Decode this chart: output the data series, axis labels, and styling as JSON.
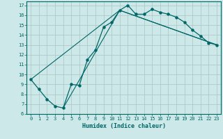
{
  "xlabel": "Humidex (Indice chaleur)",
  "bg_color": "#cce8e8",
  "grid_color": "#b0c8c8",
  "line_color": "#006666",
  "xlim": [
    -0.5,
    23.5
  ],
  "ylim": [
    6,
    17.4
  ],
  "xticks": [
    0,
    1,
    2,
    3,
    4,
    5,
    6,
    7,
    8,
    9,
    10,
    11,
    12,
    13,
    14,
    15,
    16,
    17,
    18,
    19,
    20,
    21,
    22,
    23
  ],
  "yticks": [
    6,
    7,
    8,
    9,
    10,
    11,
    12,
    13,
    14,
    15,
    16,
    17
  ],
  "main_line": {
    "x": [
      0,
      1,
      2,
      3,
      4,
      5,
      6,
      7,
      8,
      9,
      10,
      11,
      12,
      13,
      14,
      15,
      16,
      17,
      18,
      19,
      20,
      21,
      22,
      23
    ],
    "y": [
      9.5,
      8.5,
      7.5,
      6.8,
      6.6,
      9.0,
      8.9,
      11.5,
      12.5,
      14.8,
      15.3,
      16.5,
      17.0,
      16.1,
      16.1,
      16.6,
      16.3,
      16.1,
      15.8,
      15.3,
      14.5,
      13.9,
      13.2,
      13.0
    ]
  },
  "ref_line1": {
    "x": [
      4,
      11,
      23
    ],
    "y": [
      6.6,
      16.5,
      13.0
    ]
  },
  "ref_line2": {
    "x": [
      0,
      11,
      23
    ],
    "y": [
      9.5,
      16.5,
      13.0
    ]
  }
}
